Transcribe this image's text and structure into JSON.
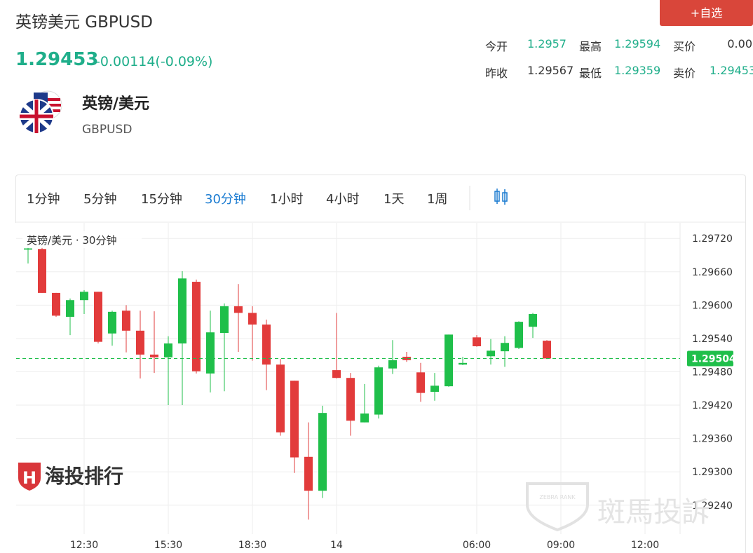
{
  "header": {
    "title": "英镑美元 GBPUSD",
    "price": "1.29453",
    "change": "-0.00114(-0.09%)",
    "button": "+自选",
    "stats": [
      {
        "label": "今开",
        "value": "1.2957",
        "color": "#1fae8a"
      },
      {
        "label": "最高",
        "value": "1.29594",
        "color": "#1fae8a"
      },
      {
        "label": "买价",
        "value": "0.00",
        "color": "#333333"
      },
      {
        "label": "昨收",
        "value": "1.29567",
        "color": "#333333"
      },
      {
        "label": "最低",
        "value": "1.29359",
        "color": "#1fae8a"
      },
      {
        "label": "卖价",
        "value": "1.29453",
        "color": "#1fae8a"
      }
    ],
    "name": "英镑/美元",
    "code": "GBPUSD"
  },
  "tabs": {
    "items": [
      "1分钟",
      "5分钟",
      "15分钟",
      "30分钟",
      "1小时",
      "4小时",
      "1天",
      "1周"
    ],
    "active": 3
  },
  "watermarks": {
    "left": "海投排行",
    "right": "斑馬投訴",
    "badge": "ZEBRA RANK"
  },
  "chart_data": {
    "type": "candlestick",
    "legend": "英镑/美元 · 30分钟",
    "categories": [
      null,
      null,
      null,
      null,
      "12:30",
      null,
      null,
      null,
      null,
      null,
      "15:30",
      null,
      null,
      null,
      null,
      null,
      "18:30",
      null,
      null,
      null,
      null,
      null,
      "14",
      null,
      null,
      null,
      null,
      null,
      null,
      null,
      null,
      null,
      "06:00",
      null,
      null,
      null,
      null,
      null,
      "09:00",
      null,
      null,
      null,
      null,
      null,
      "12:00",
      null,
      null
    ],
    "open": [
      1.297,
      1.29701,
      1.29622,
      1.29579,
      1.29609,
      1.29624,
      1.29549,
      1.2959,
      1.29554,
      1.29511,
      1.29506,
      1.29531,
      1.29642,
      1.29477,
      1.2955,
      1.29598,
      1.29586,
      1.29565,
      1.29493,
      1.29464,
      1.29327,
      1.29266,
      1.29483,
      1.29469,
      1.29389,
      1.29403,
      1.29486,
      1.29507,
      1.29479,
      1.29444,
      1.29454,
      1.29493,
      1.29542,
      1.29508,
      1.29517,
      1.29523,
      1.29561,
      1.29536,
      null,
      null,
      null,
      null,
      null,
      null,
      null,
      null,
      null
    ],
    "high": [
      1.29705,
      1.29705,
      1.29622,
      1.29612,
      1.29627,
      1.29624,
      1.2959,
      1.296,
      1.2959,
      1.29589,
      1.29544,
      1.29661,
      1.29646,
      1.2959,
      1.29603,
      1.29638,
      1.29598,
      1.29574,
      1.29503,
      1.29464,
      1.29389,
      1.29419,
      1.29586,
      1.29478,
      1.29458,
      1.29491,
      1.29537,
      1.29516,
      1.29496,
      1.29478,
      1.29547,
      1.29507,
      1.29546,
      1.29539,
      1.29544,
      1.29571,
      1.29586,
      1.29537,
      null,
      null,
      null,
      null,
      null,
      null,
      null,
      null,
      null
    ],
    "low": [
      1.29675,
      1.29622,
      1.29579,
      1.29546,
      1.29584,
      1.29531,
      1.29527,
      1.29515,
      1.29468,
      1.29478,
      1.2942,
      1.2942,
      1.29477,
      1.29443,
      1.29445,
      1.29516,
      1.295,
      1.29447,
      1.29365,
      1.29298,
      1.29214,
      1.29253,
      1.29468,
      1.29365,
      1.29389,
      1.29396,
      1.29476,
      1.29498,
      1.29426,
      1.29428,
      1.29453,
      1.29492,
      1.29525,
      1.29493,
      1.29489,
      1.29521,
      1.29541,
      1.29503,
      null,
      null,
      null,
      null,
      null,
      null,
      null,
      null,
      null
    ],
    "close": [
      1.29702,
      1.29622,
      1.29581,
      1.29609,
      1.29624,
      1.29534,
      1.29588,
      1.29554,
      1.29511,
      1.29506,
      1.29531,
      1.29648,
      1.29481,
      1.29551,
      1.29598,
      1.29586,
      1.29565,
      1.29493,
      1.29371,
      1.29326,
      1.29266,
      1.29406,
      1.29469,
      1.29392,
      1.29405,
      1.29488,
      1.29501,
      1.29501,
      1.29442,
      1.29455,
      1.29547,
      1.29496,
      1.29526,
      1.29518,
      1.29532,
      1.2957,
      1.29584,
      1.29504,
      null,
      null,
      null,
      null,
      null,
      null,
      null,
      null,
      null
    ],
    "up_color": "#1fbf4a",
    "down_color": "#e23b3b",
    "ylim": [
      1.29188,
      1.29748
    ],
    "yticks": [
      {
        "value": 1.2972,
        "label": "1.29720"
      },
      {
        "value": 1.2966,
        "label": "1.29660"
      },
      {
        "value": 1.296,
        "label": "1.29600"
      },
      {
        "value": 1.2954,
        "label": "1.29540"
      },
      {
        "value": 1.2948,
        "label": "1.29480"
      },
      {
        "value": 1.2942,
        "label": "1.29420"
      },
      {
        "value": 1.2936,
        "label": "1.29360"
      },
      {
        "value": 1.293,
        "label": "1.29300"
      },
      {
        "value": 1.2924,
        "label": "1.29240"
      }
    ],
    "last_price": {
      "value": 1.29504,
      "label": "1.29504"
    },
    "grid": true
  }
}
